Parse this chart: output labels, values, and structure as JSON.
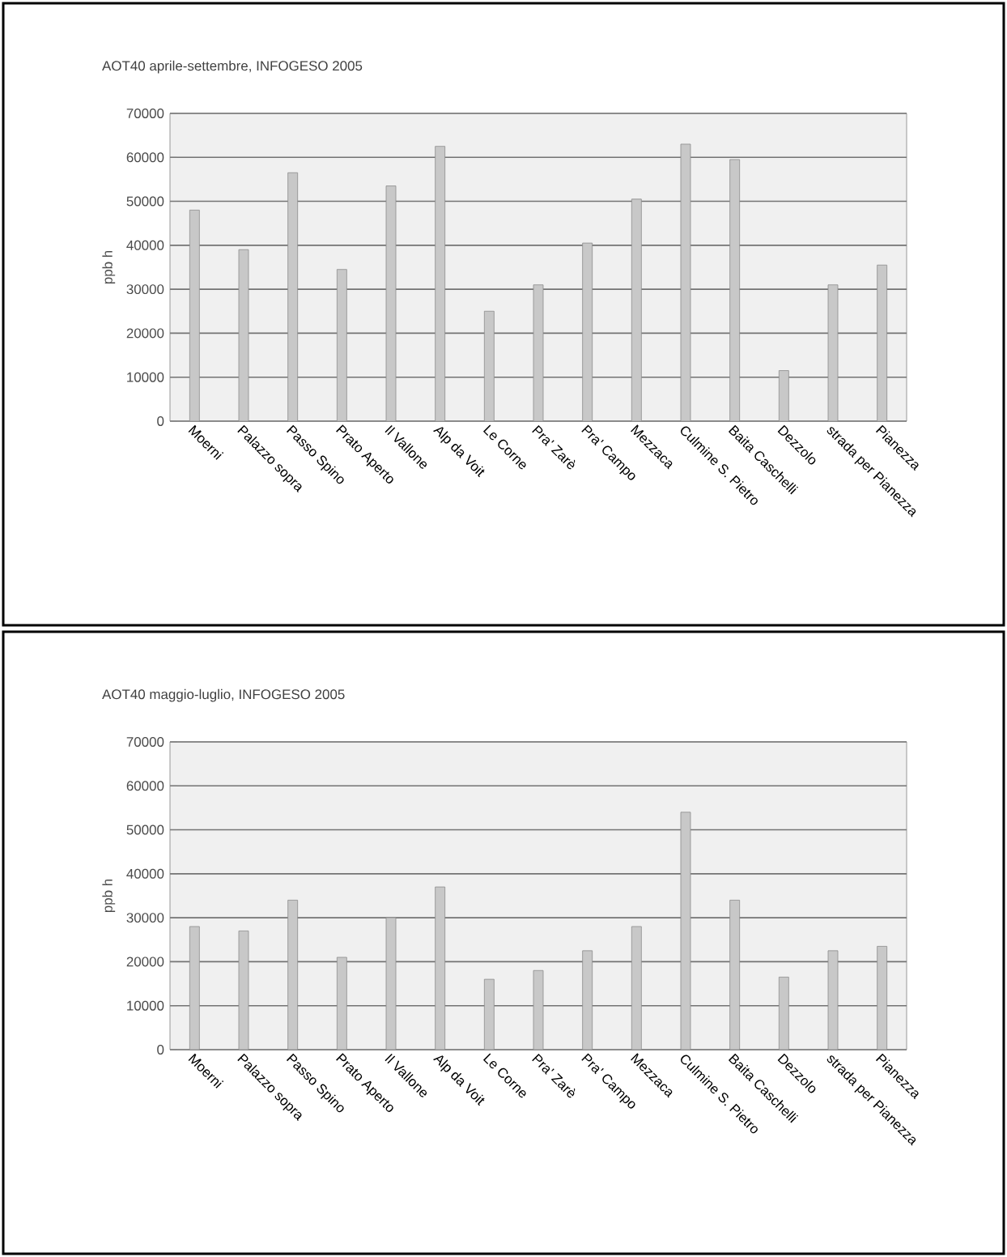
{
  "chart_data": [
    {
      "type": "bar",
      "title": "AOT40 aprile-settembre, INFOGESO 2005",
      "ylabel": "ppb h",
      "categories": [
        "Moerni",
        "Palazzo sopra",
        "Passo Spino",
        "Prato Aperto",
        "Il Vallone",
        "Alp da Voit",
        "Le Corne",
        "Pra' Zarè",
        "Pra' Campo",
        "Mezzaca",
        "Culmine S. Pietro",
        "Baita Caschelli",
        "Dezzolo",
        "strada per Pianezza",
        "Pianezza"
      ],
      "values": [
        48000,
        39000,
        56500,
        34500,
        53500,
        62500,
        25000,
        31000,
        40500,
        50500,
        63000,
        59500,
        11500,
        31000,
        35500
      ],
      "color": "#c8c8c8",
      "ylim": [
        0,
        70000
      ],
      "yticks": [
        0,
        10000,
        20000,
        30000,
        40000,
        50000,
        60000,
        70000
      ],
      "grid": "y"
    },
    {
      "type": "bar",
      "title": "AOT40 maggio-luglio, INFOGESO 2005",
      "ylabel": "ppb h",
      "categories": [
        "Moerni",
        "Palazzo sopra",
        "Passo Spino",
        "Prato Aperto",
        "Il Vallone",
        "Alp da Voit",
        "Le Corne",
        "Pra' Zarè",
        "Pra' Campo",
        "Mezzaca",
        "Culmine S. Pietro",
        "Baita Caschelli",
        "Dezzolo",
        "strada per Pianezza",
        "Pianezza"
      ],
      "values": [
        28000,
        27000,
        34000,
        21000,
        30000,
        37000,
        16000,
        18000,
        22500,
        28000,
        54000,
        34000,
        16500,
        22500,
        23500
      ],
      "color": "#c8c8c8",
      "ylim": [
        0,
        70000
      ],
      "yticks": [
        0,
        10000,
        20000,
        30000,
        40000,
        50000,
        60000,
        70000
      ],
      "grid": "y"
    }
  ]
}
